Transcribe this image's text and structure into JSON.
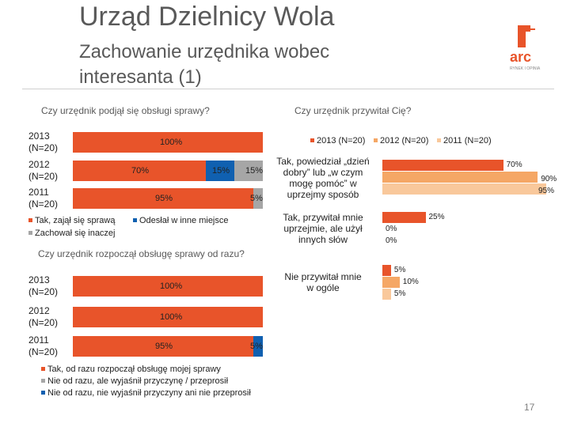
{
  "header": {
    "title": "Urząd Dzielnicy Wola",
    "subtitle_line1": "Zachowanie urzędnika wobec",
    "subtitle_line2": "interesanta (1)"
  },
  "logo": {
    "text": "arc",
    "tagline": "RYNEK I OPINIA"
  },
  "colors": {
    "orange": "#e8542a",
    "lightorange": "#f5a765",
    "peach": "#f9c89b",
    "blue": "#1060b0",
    "gray": "#a6a6a6"
  },
  "page_number": "17",
  "chart_data": [
    {
      "type": "bar",
      "stacked": true,
      "orientation": "horizontal",
      "title": "Czy urzędnik podjął się obsługi sprawy?",
      "categories": [
        "2013\n(N=20)",
        "2012\n(N=20)",
        "2011\n(N=20)"
      ],
      "labels": [
        "2013 (N=20)",
        "2012 (N=20)",
        "2011 (N=20)"
      ],
      "label_line1": [
        "2013",
        "2012",
        "2011"
      ],
      "label_line2": [
        "(N=20)",
        "(N=20)",
        "(N=20)"
      ],
      "series": [
        {
          "name": "Tak, zajął się sprawą",
          "values": [
            100,
            70,
            95
          ],
          "value_labels": [
            "100%",
            "70%",
            "95%"
          ]
        },
        {
          "name": "Odesłał w inne miejsce",
          "values": [
            0,
            15,
            0
          ],
          "value_labels": [
            "",
            "15%",
            ""
          ]
        },
        {
          "name": "Zachował się inaczej",
          "values": [
            0,
            15,
            5
          ],
          "value_labels": [
            "",
            "15%",
            "5%"
          ]
        }
      ],
      "xlim": [
        0,
        100
      ]
    },
    {
      "type": "bar",
      "stacked": true,
      "orientation": "horizontal",
      "title": "Czy urzędnik rozpoczął obsługę sprawy od razu?",
      "categories": [
        "2013\n(N=20)",
        "2012\n(N=20)",
        "2011\n(N=20)"
      ],
      "label_line1": [
        "2013",
        "2012",
        "2011"
      ],
      "label_line2": [
        "(N=20)",
        "(N=20)",
        "(N=20)"
      ],
      "series": [
        {
          "name": "Tak, od razu rozpoczął obsługę mojej sprawy",
          "values": [
            100,
            100,
            95
          ],
          "value_labels": [
            "100%",
            "100%",
            "95%"
          ]
        },
        {
          "name": "Nie od razu, ale wyjaśnił przyczynę / przeprosił",
          "values": [
            0,
            0,
            0
          ],
          "value_labels": [
            "",
            "",
            ""
          ]
        },
        {
          "name": "Nie od razu, nie wyjaśnił przyczyny ani nie przeprosił",
          "values": [
            0,
            0,
            5
          ],
          "value_labels": [
            "",
            "",
            "5%"
          ]
        }
      ],
      "xlim": [
        0,
        100
      ]
    },
    {
      "type": "bar",
      "orientation": "horizontal",
      "title": "Czy urzędnik przywitał Cię?",
      "categories": [
        [
          "Tak, powiedział „dzień",
          "dobry” lub „w czym",
          "mogę pomóc” w",
          "uprzejmy sposób"
        ],
        [
          "Tak, przywitał mnie",
          "uprzejmie, ale użył",
          "innych słów"
        ],
        [
          "Nie przywitał mnie",
          "w ogóle"
        ]
      ],
      "series": [
        {
          "name": "2013 (N=20)",
          "values": [
            70,
            25,
            5
          ],
          "value_labels": [
            "70%",
            "25%",
            "5%"
          ]
        },
        {
          "name": "2012 (N=20)",
          "values": [
            90,
            0,
            10
          ],
          "value_labels": [
            "90%",
            "0%",
            "10%"
          ]
        },
        {
          "name": "2011 (N=20)",
          "values": [
            95,
            0,
            5
          ],
          "value_labels": [
            "95%",
            "0%",
            "5%"
          ]
        }
      ],
      "xlim": [
        0,
        100
      ]
    }
  ]
}
